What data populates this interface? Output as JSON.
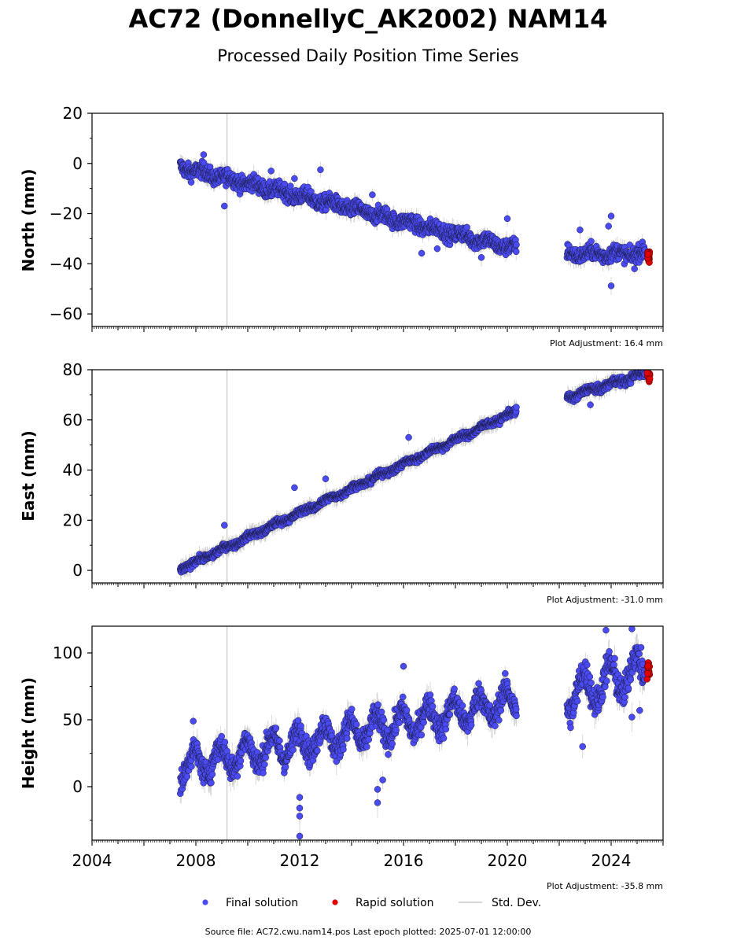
{
  "title": "AC72 (DonnellyC_AK2002) NAM14",
  "subtitle": "Processed Daily Position Time Series",
  "footer": "Source file: AC72.cwu.nam14.pos  Last epoch plotted: 2025-07-01 12:00:00",
  "legend": {
    "placement": "bottom-center",
    "items": [
      {
        "label": "Final solution",
        "color": "#4b4bf5"
      },
      {
        "label": "Rapid solution",
        "color": "#e00000"
      },
      {
        "label": "Std. Dev.",
        "color": "#c8c8c8"
      }
    ]
  },
  "colors": {
    "final": "#4b4bf5",
    "rapid": "#e00000",
    "stddev": "#bdbdbd",
    "marker_line": "#ffffff"
  },
  "chart_data": [
    {
      "type": "scatter",
      "ylabel": "North (mm)",
      "adjustment": "Plot Adjustment: 16.4 mm",
      "xlim": [
        2004,
        2026
      ],
      "ylim": [
        -65,
        20
      ],
      "yticks": [
        "20",
        "0",
        "−20",
        "−40",
        "−60"
      ],
      "ytick_values": [
        20,
        0,
        -20,
        -40,
        -60
      ],
      "marker_line_year": 2009.2,
      "segments": [
        {
          "start": 2007.4,
          "end": 2020.35,
          "y_start": -1.5,
          "y_end": -34,
          "noise": 2.2,
          "seasonal": 1.0
        },
        {
          "start": 2022.3,
          "end": 2025.3,
          "y_start": -36,
          "y_end": -36,
          "noise": 2.2,
          "seasonal": 1.0
        }
      ],
      "outliers": [
        [
          2008.3,
          3.5
        ],
        [
          2009.1,
          -17
        ],
        [
          2010.9,
          -3
        ],
        [
          2011.8,
          -6
        ],
        [
          2012.8,
          -2.5
        ],
        [
          2014.8,
          -12.5
        ],
        [
          2016.7,
          -35.8
        ],
        [
          2017.3,
          -34
        ],
        [
          2019.0,
          -37.5
        ],
        [
          2020.0,
          -22
        ],
        [
          2022.8,
          -26.5
        ],
        [
          2023.9,
          -25
        ],
        [
          2024.0,
          -48.8
        ],
        [
          2024.0,
          -21
        ],
        [
          2024.9,
          -42
        ]
      ],
      "rapid": {
        "start": 2025.38,
        "end": 2025.5,
        "y": -37.5,
        "spread": 2.5
      }
    },
    {
      "type": "scatter",
      "ylabel": "East (mm)",
      "adjustment": "Plot Adjustment: -31.0 mm",
      "xlim": [
        2004,
        2026
      ],
      "ylim": [
        -5,
        80
      ],
      "yticks": [
        "80",
        "60",
        "40",
        "20",
        "0"
      ],
      "ytick_values": [
        80,
        60,
        40,
        20,
        0
      ],
      "marker_line_year": 2009.2,
      "segments": [
        {
          "start": 2007.4,
          "end": 2020.35,
          "y_start": 0.5,
          "y_end": 63.5,
          "noise": 1.0,
          "seasonal": 0.6
        },
        {
          "start": 2022.3,
          "end": 2025.3,
          "y_start": 69,
          "y_end": 78.5,
          "noise": 1.2,
          "seasonal": 0.8
        }
      ],
      "outliers": [
        [
          2009.1,
          18
        ],
        [
          2011.8,
          33
        ],
        [
          2013.0,
          36.5
        ],
        [
          2016.2,
          53
        ],
        [
          2023.2,
          66
        ]
      ],
      "rapid": {
        "start": 2025.38,
        "end": 2025.5,
        "y": 77,
        "spread": 2.2
      }
    },
    {
      "type": "scatter",
      "ylabel": "Height (mm)",
      "adjustment": "Plot Adjustment: -35.8 mm",
      "xlim": [
        2004,
        2026
      ],
      "xticks": [
        "2004",
        "2008",
        "2012",
        "2016",
        "2020",
        "2024"
      ],
      "xtick_values": [
        2004,
        2008,
        2012,
        2016,
        2020,
        2024
      ],
      "ylim": [
        -40,
        120
      ],
      "yticks": [
        "100",
        "50",
        "0"
      ],
      "ytick_values": [
        100,
        50,
        0
      ],
      "marker_line_year": 2009.2,
      "segments": [
        {
          "start": 2007.4,
          "end": 2020.35,
          "y_start": 15,
          "y_end": 64,
          "noise": 6.5,
          "seasonal": 10
        },
        {
          "start": 2022.3,
          "end": 2025.3,
          "y_start": 68,
          "y_end": 88,
          "noise": 8,
          "seasonal": 13
        }
      ],
      "outliers": [
        [
          2007.9,
          49
        ],
        [
          2012.0,
          -8
        ],
        [
          2012.0,
          -16
        ],
        [
          2012.0,
          -22
        ],
        [
          2012.0,
          -37
        ],
        [
          2015.0,
          -12
        ],
        [
          2015.0,
          -2
        ],
        [
          2015.2,
          5
        ],
        [
          2016.0,
          90
        ],
        [
          2022.9,
          30
        ],
        [
          2023.8,
          117
        ],
        [
          2024.8,
          118
        ],
        [
          2024.8,
          52
        ],
        [
          2025.1,
          57
        ]
      ],
      "rapid": {
        "start": 2025.38,
        "end": 2025.5,
        "y": 86,
        "spread": 7
      }
    }
  ]
}
